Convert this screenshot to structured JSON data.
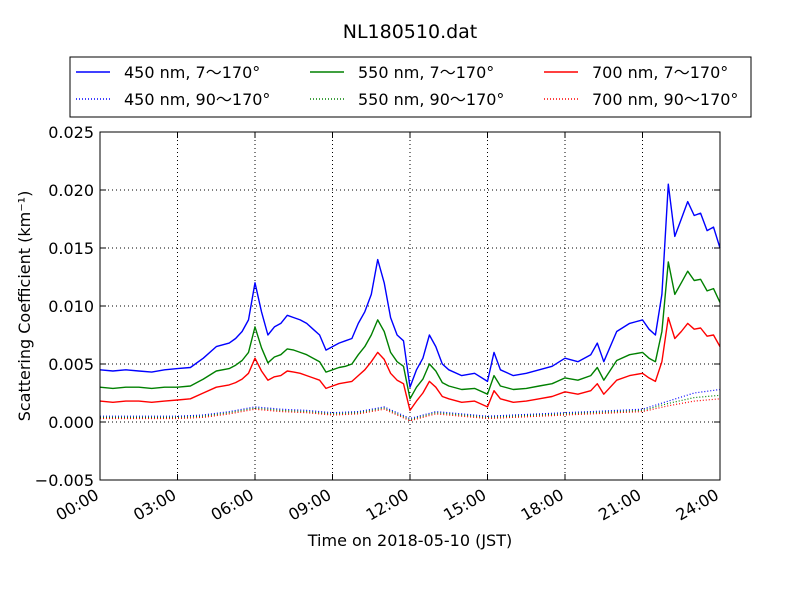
{
  "chart_data": {
    "type": "line",
    "title": "NL180510.dat",
    "xlabel": "Time on 2018-05-10 (JST)",
    "ylabel": "Scattering Coefficient (km⁻¹)",
    "xlim": [
      0,
      24
    ],
    "ylim": [
      -0.005,
      0.025
    ],
    "x_ticks": [
      0,
      3,
      6,
      9,
      12,
      15,
      18,
      21,
      24
    ],
    "x_tick_labels": [
      "00:00",
      "03:00",
      "06:00",
      "09:00",
      "12:00",
      "15:00",
      "18:00",
      "21:00",
      "24:00"
    ],
    "y_ticks": [
      -0.005,
      0,
      0.005,
      0.01,
      0.015,
      0.02,
      0.025
    ],
    "y_tick_labels": [
      "−0.005",
      "0.000",
      "0.005",
      "0.010",
      "0.015",
      "0.020",
      "0.025"
    ],
    "grid": true,
    "legend_position": "top",
    "x_units": "hours",
    "series": [
      {
        "name": "450 nm, 7～170°",
        "color": "#0000ff",
        "style": "solid",
        "x": [
          0,
          0.5,
          1,
          1.5,
          2,
          2.5,
          3,
          3.5,
          4,
          4.5,
          5,
          5.25,
          5.5,
          5.75,
          6,
          6.25,
          6.5,
          6.75,
          7,
          7.25,
          7.5,
          7.75,
          8,
          8.25,
          8.5,
          8.75,
          9,
          9.25,
          9.5,
          9.75,
          10,
          10.25,
          10.5,
          10.75,
          11,
          11.25,
          11.5,
          11.75,
          12,
          12.25,
          12.5,
          12.75,
          13,
          13.25,
          13.5,
          14,
          14.5,
          15,
          15.25,
          15.5,
          16,
          16.5,
          17,
          17.5,
          18,
          18.5,
          19,
          19.25,
          19.5,
          20,
          20.5,
          21,
          21.25,
          21.5,
          21.75,
          22,
          22.25,
          22.5,
          22.75,
          23,
          23.25,
          23.5,
          23.75,
          24
        ],
        "y": [
          0.0045,
          0.0044,
          0.0045,
          0.0044,
          0.0043,
          0.0045,
          0.0046,
          0.0047,
          0.0055,
          0.0065,
          0.0068,
          0.0072,
          0.0078,
          0.0088,
          0.012,
          0.0095,
          0.0075,
          0.0082,
          0.0085,
          0.0092,
          0.009,
          0.0088,
          0.0085,
          0.008,
          0.0075,
          0.0062,
          0.0065,
          0.0068,
          0.007,
          0.0072,
          0.0085,
          0.0095,
          0.011,
          0.014,
          0.012,
          0.009,
          0.0075,
          0.007,
          0.003,
          0.0045,
          0.0055,
          0.0075,
          0.0065,
          0.005,
          0.0045,
          0.004,
          0.0042,
          0.0035,
          0.006,
          0.0045,
          0.004,
          0.0042,
          0.0045,
          0.0048,
          0.0055,
          0.0052,
          0.0058,
          0.0068,
          0.0052,
          0.0078,
          0.0085,
          0.0088,
          0.008,
          0.0075,
          0.011,
          0.0205,
          0.016,
          0.0175,
          0.019,
          0.0178,
          0.018,
          0.0165,
          0.0168,
          0.015
        ]
      },
      {
        "name": "450 nm, 90～170°",
        "color": "#0000ff",
        "style": "dotted",
        "x": [
          0,
          1,
          2,
          3,
          4,
          5,
          6,
          7,
          8,
          9,
          10,
          11,
          12,
          13,
          14,
          15,
          16,
          17,
          18,
          19,
          20,
          21,
          22,
          23,
          24
        ],
        "y": [
          0.0005,
          0.0005,
          0.0005,
          0.0005,
          0.0006,
          0.0009,
          0.0013,
          0.0011,
          0.001,
          0.0008,
          0.0009,
          0.0013,
          0.0003,
          0.0009,
          0.0007,
          0.0005,
          0.0006,
          0.0007,
          0.0008,
          0.0009,
          0.001,
          0.0011,
          0.0018,
          0.0025,
          0.0028
        ]
      },
      {
        "name": "550 nm, 7～170°",
        "color": "#008000",
        "style": "solid",
        "x": [
          0,
          0.5,
          1,
          1.5,
          2,
          2.5,
          3,
          3.5,
          4,
          4.5,
          5,
          5.25,
          5.5,
          5.75,
          6,
          6.25,
          6.5,
          6.75,
          7,
          7.25,
          7.5,
          7.75,
          8,
          8.25,
          8.5,
          8.75,
          9,
          9.25,
          9.5,
          9.75,
          10,
          10.25,
          10.5,
          10.75,
          11,
          11.25,
          11.5,
          11.75,
          12,
          12.25,
          12.5,
          12.75,
          13,
          13.25,
          13.5,
          14,
          14.5,
          15,
          15.25,
          15.5,
          16,
          16.5,
          17,
          17.5,
          18,
          18.5,
          19,
          19.25,
          19.5,
          20,
          20.5,
          21,
          21.25,
          21.5,
          21.75,
          22,
          22.25,
          22.5,
          22.75,
          23,
          23.25,
          23.5,
          23.75,
          24
        ],
        "y": [
          0.003,
          0.0029,
          0.003,
          0.003,
          0.0029,
          0.003,
          0.003,
          0.0031,
          0.0037,
          0.0044,
          0.0046,
          0.0049,
          0.0053,
          0.006,
          0.0082,
          0.0064,
          0.0051,
          0.0056,
          0.0058,
          0.0063,
          0.0062,
          0.006,
          0.0058,
          0.0055,
          0.0052,
          0.0043,
          0.0045,
          0.0047,
          0.0048,
          0.005,
          0.0058,
          0.0065,
          0.0075,
          0.0088,
          0.0078,
          0.006,
          0.0052,
          0.0048,
          0.002,
          0.003,
          0.0037,
          0.005,
          0.0044,
          0.0034,
          0.0031,
          0.0028,
          0.0029,
          0.0024,
          0.004,
          0.0031,
          0.0028,
          0.0029,
          0.0031,
          0.0033,
          0.0038,
          0.0036,
          0.004,
          0.0047,
          0.0036,
          0.0053,
          0.0058,
          0.006,
          0.0055,
          0.0052,
          0.0078,
          0.0138,
          0.011,
          0.012,
          0.013,
          0.0122,
          0.0123,
          0.0113,
          0.0115,
          0.0103
        ]
      },
      {
        "name": "550 nm, 90～170°",
        "color": "#008000",
        "style": "dotted",
        "x": [
          0,
          1,
          2,
          3,
          4,
          5,
          6,
          7,
          8,
          9,
          10,
          11,
          12,
          13,
          14,
          15,
          16,
          17,
          18,
          19,
          20,
          21,
          22,
          23,
          24
        ],
        "y": [
          0.0004,
          0.0004,
          0.0004,
          0.0004,
          0.0005,
          0.0008,
          0.0012,
          0.001,
          0.0009,
          0.0007,
          0.0008,
          0.0012,
          0.0002,
          0.0008,
          0.0006,
          0.0004,
          0.0005,
          0.0006,
          0.0007,
          0.0008,
          0.0009,
          0.001,
          0.0016,
          0.0021,
          0.0023
        ]
      },
      {
        "name": "700 nm, 7～170°",
        "color": "#ff0000",
        "style": "solid",
        "x": [
          0,
          0.5,
          1,
          1.5,
          2,
          2.5,
          3,
          3.5,
          4,
          4.5,
          5,
          5.25,
          5.5,
          5.75,
          6,
          6.25,
          6.5,
          6.75,
          7,
          7.25,
          7.5,
          7.75,
          8,
          8.25,
          8.5,
          8.75,
          9,
          9.25,
          9.5,
          9.75,
          10,
          10.25,
          10.5,
          10.75,
          11,
          11.25,
          11.5,
          11.75,
          12,
          12.25,
          12.5,
          12.75,
          13,
          13.25,
          13.5,
          14,
          14.5,
          15,
          15.25,
          15.5,
          16,
          16.5,
          17,
          17.5,
          18,
          18.5,
          19,
          19.25,
          19.5,
          20,
          20.5,
          21,
          21.25,
          21.5,
          21.75,
          22,
          22.25,
          22.5,
          22.75,
          23,
          23.25,
          23.5,
          23.75,
          24
        ],
        "y": [
          0.0018,
          0.0017,
          0.0018,
          0.0018,
          0.0017,
          0.0018,
          0.0019,
          0.002,
          0.0025,
          0.003,
          0.0032,
          0.0034,
          0.0037,
          0.0042,
          0.0055,
          0.0044,
          0.0036,
          0.0039,
          0.004,
          0.0044,
          0.0043,
          0.0042,
          0.004,
          0.0038,
          0.0036,
          0.0029,
          0.0031,
          0.0033,
          0.0034,
          0.0035,
          0.004,
          0.0045,
          0.0052,
          0.006,
          0.0054,
          0.0042,
          0.0036,
          0.0033,
          0.001,
          0.0018,
          0.0025,
          0.0035,
          0.003,
          0.0022,
          0.002,
          0.0017,
          0.0018,
          0.0013,
          0.0027,
          0.002,
          0.0017,
          0.0018,
          0.002,
          0.0022,
          0.0026,
          0.0024,
          0.0027,
          0.0033,
          0.0024,
          0.0036,
          0.004,
          0.0042,
          0.0038,
          0.0035,
          0.0052,
          0.009,
          0.0072,
          0.0078,
          0.0085,
          0.008,
          0.0081,
          0.0074,
          0.0075,
          0.0065
        ]
      },
      {
        "name": "700 nm, 90～170°",
        "color": "#ff0000",
        "style": "dotted",
        "x": [
          0,
          1,
          2,
          3,
          4,
          5,
          6,
          7,
          8,
          9,
          10,
          11,
          12,
          13,
          14,
          15,
          16,
          17,
          18,
          19,
          20,
          21,
          22,
          23,
          24
        ],
        "y": [
          0.0003,
          0.0003,
          0.0003,
          0.0003,
          0.0004,
          0.0007,
          0.0011,
          0.0009,
          0.0008,
          0.0006,
          0.0007,
          0.0011,
          0.0001,
          0.0007,
          0.0005,
          0.0003,
          0.0004,
          0.0005,
          0.0006,
          0.0007,
          0.0008,
          0.0009,
          0.0014,
          0.0018,
          0.002
        ]
      }
    ]
  }
}
